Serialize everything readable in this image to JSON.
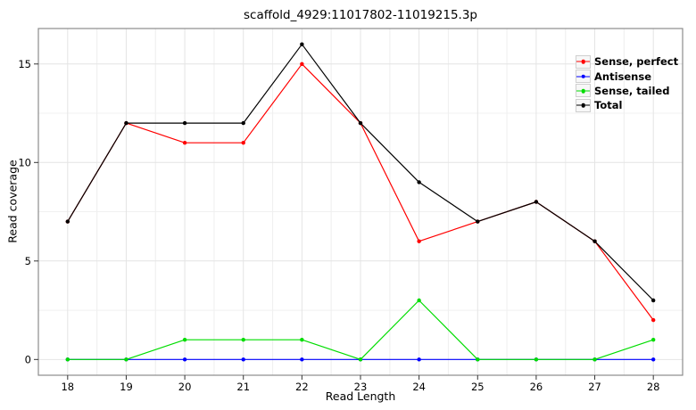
{
  "title": "scaffold_4929:11017802-11019215.3p",
  "chart_data": {
    "type": "line",
    "title": "scaffold_4929:11017802-11019215.3p",
    "xlabel": "Read Length",
    "ylabel": "Read coverage",
    "x": [
      18,
      19,
      20,
      21,
      22,
      23,
      24,
      25,
      26,
      27,
      28
    ],
    "series": [
      {
        "name": "Sense, perfect",
        "color": "#ff0000",
        "values": [
          7,
          12,
          11,
          11,
          15,
          12,
          6,
          7,
          8,
          6,
          2
        ]
      },
      {
        "name": "Antisense",
        "color": "#0000ff",
        "values": [
          0,
          0,
          0,
          0,
          0,
          0,
          0,
          0,
          0,
          0,
          0
        ]
      },
      {
        "name": "Sense, tailed",
        "color": "#00dd00",
        "values": [
          0,
          0,
          1,
          1,
          1,
          0,
          3,
          0,
          0,
          0,
          1
        ]
      },
      {
        "name": "Total",
        "color": "#000000",
        "values": [
          7,
          12,
          12,
          12,
          16,
          12,
          9,
          7,
          8,
          6,
          3
        ]
      }
    ],
    "x_ticks": [
      18,
      19,
      20,
      21,
      22,
      23,
      24,
      25,
      26,
      27,
      28
    ],
    "y_ticks": [
      0,
      5,
      10,
      15
    ],
    "xlim": [
      17.5,
      28.5
    ],
    "ylim": [
      -0.8,
      16.8
    ],
    "grid": "major+minor",
    "legend_position": "top-right-inside",
    "colors": {
      "panel_border": "#8c8c8c",
      "grid_major": "#e4e4e4",
      "grid_minor": "#f0f0f0",
      "tick": "#333333",
      "text": "#000000"
    }
  }
}
